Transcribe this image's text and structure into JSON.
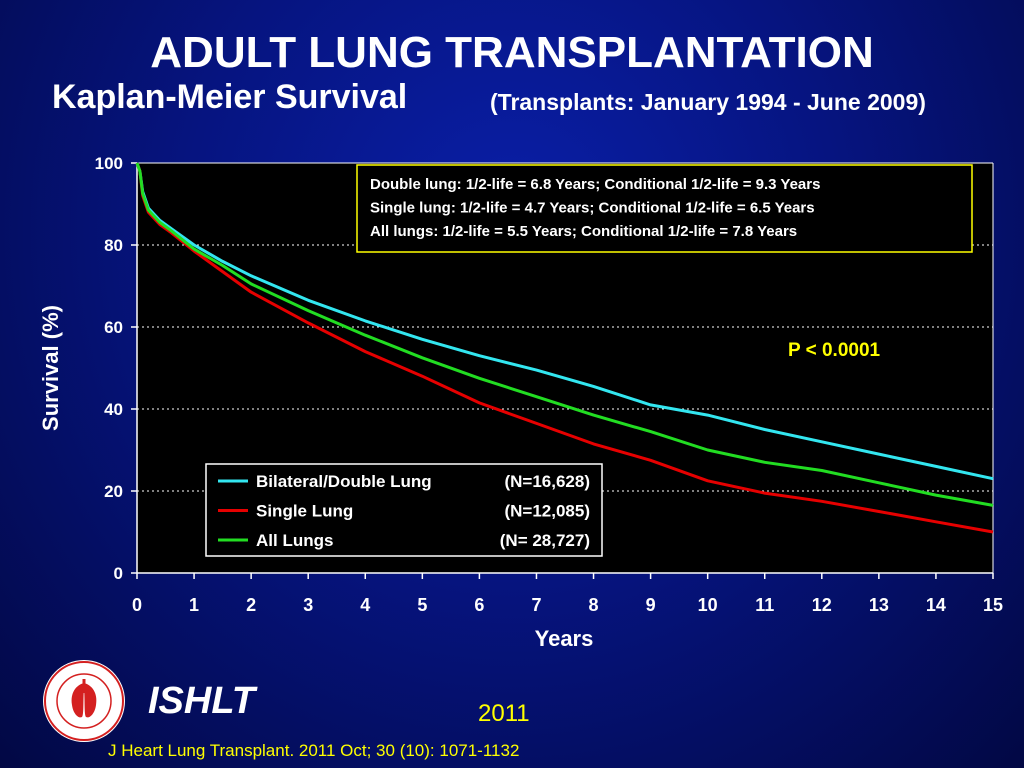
{
  "header": {
    "title": "ADULT LUNG TRANSPLANTATION",
    "subtitle": "Kaplan-Meier Survival",
    "date_range": "(Transplants: January 1994 - June 2009)"
  },
  "footer": {
    "org": "ISHLT",
    "year": "2011",
    "citation": "J Heart Lung Transplant. 2011 Oct; 30 (10): 1071-1132",
    "logo_text": "INTERNATIONAL SOCIETY FOR HEART & LUNG TRANSPLANTATION"
  },
  "colors": {
    "background": "#061480",
    "plot_bg": "#000000",
    "bilateral": "#33e6f0",
    "single": "#e60000",
    "all": "#22dd22",
    "annotation": "#ffff00"
  },
  "chart_data": {
    "type": "line",
    "xlabel": "Years",
    "ylabel": "Survival (%)",
    "xlim": [
      0,
      15
    ],
    "ylim": [
      0,
      100
    ],
    "x_ticks": [
      0,
      1,
      2,
      3,
      4,
      5,
      6,
      7,
      8,
      9,
      10,
      11,
      12,
      13,
      14,
      15
    ],
    "y_ticks": [
      0,
      20,
      40,
      60,
      80,
      100
    ],
    "grid": "horizontal dotted",
    "legend_position": "lower-center",
    "annotation_box": [
      "Double lung: 1/2-life = 6.8 Years; Conditional 1/2-life = 9.3 Years",
      "Single lung: 1/2-life = 4.7 Years; Conditional 1/2-life = 6.5 Years",
      "All lungs: 1/2-life = 5.5 Years; Conditional 1/2-life = 7.8 Years"
    ],
    "p_value": "P < 0.0001",
    "series": [
      {
        "name": "Bilateral/Double Lung",
        "n_label": "(N=16,628)",
        "color": "#33e6f0",
        "x": [
          0,
          0.05,
          0.1,
          0.2,
          0.4,
          0.6,
          1,
          1.5,
          2,
          3,
          4,
          5,
          6,
          7,
          8,
          9,
          10,
          11,
          12,
          13,
          14,
          15
        ],
        "y": [
          100,
          98,
          93,
          89,
          86,
          84,
          80,
          76,
          72.5,
          66.5,
          61.5,
          57,
          53,
          49.5,
          45.5,
          41,
          38.5,
          35,
          32,
          29,
          26,
          23
        ]
      },
      {
        "name": "Single Lung",
        "n_label": "(N=12,085)",
        "color": "#e60000",
        "x": [
          0,
          0.05,
          0.1,
          0.2,
          0.4,
          0.6,
          1,
          1.5,
          2,
          3,
          4,
          5,
          6,
          7,
          8,
          9,
          10,
          11,
          12,
          13,
          14,
          15
        ],
        "y": [
          100,
          98,
          92,
          88,
          85,
          83,
          78.5,
          73.5,
          68.5,
          61,
          54,
          48,
          41.5,
          36.5,
          31.5,
          27.5,
          22.5,
          19.5,
          17.5,
          15,
          12.5,
          10
        ]
      },
      {
        "name": "All Lungs",
        "n_label": "(N= 28,727)",
        "color": "#22dd22",
        "x": [
          0,
          0.05,
          0.1,
          0.2,
          0.4,
          0.6,
          1,
          1.5,
          2,
          3,
          4,
          5,
          6,
          7,
          8,
          9,
          10,
          11,
          12,
          13,
          14,
          15
        ],
        "y": [
          100,
          98,
          92.5,
          88.5,
          85.5,
          83.5,
          79,
          75,
          70.5,
          64,
          58,
          52.5,
          47.5,
          43,
          38.5,
          34.5,
          30,
          27,
          25,
          22,
          19,
          16.5
        ]
      }
    ]
  }
}
